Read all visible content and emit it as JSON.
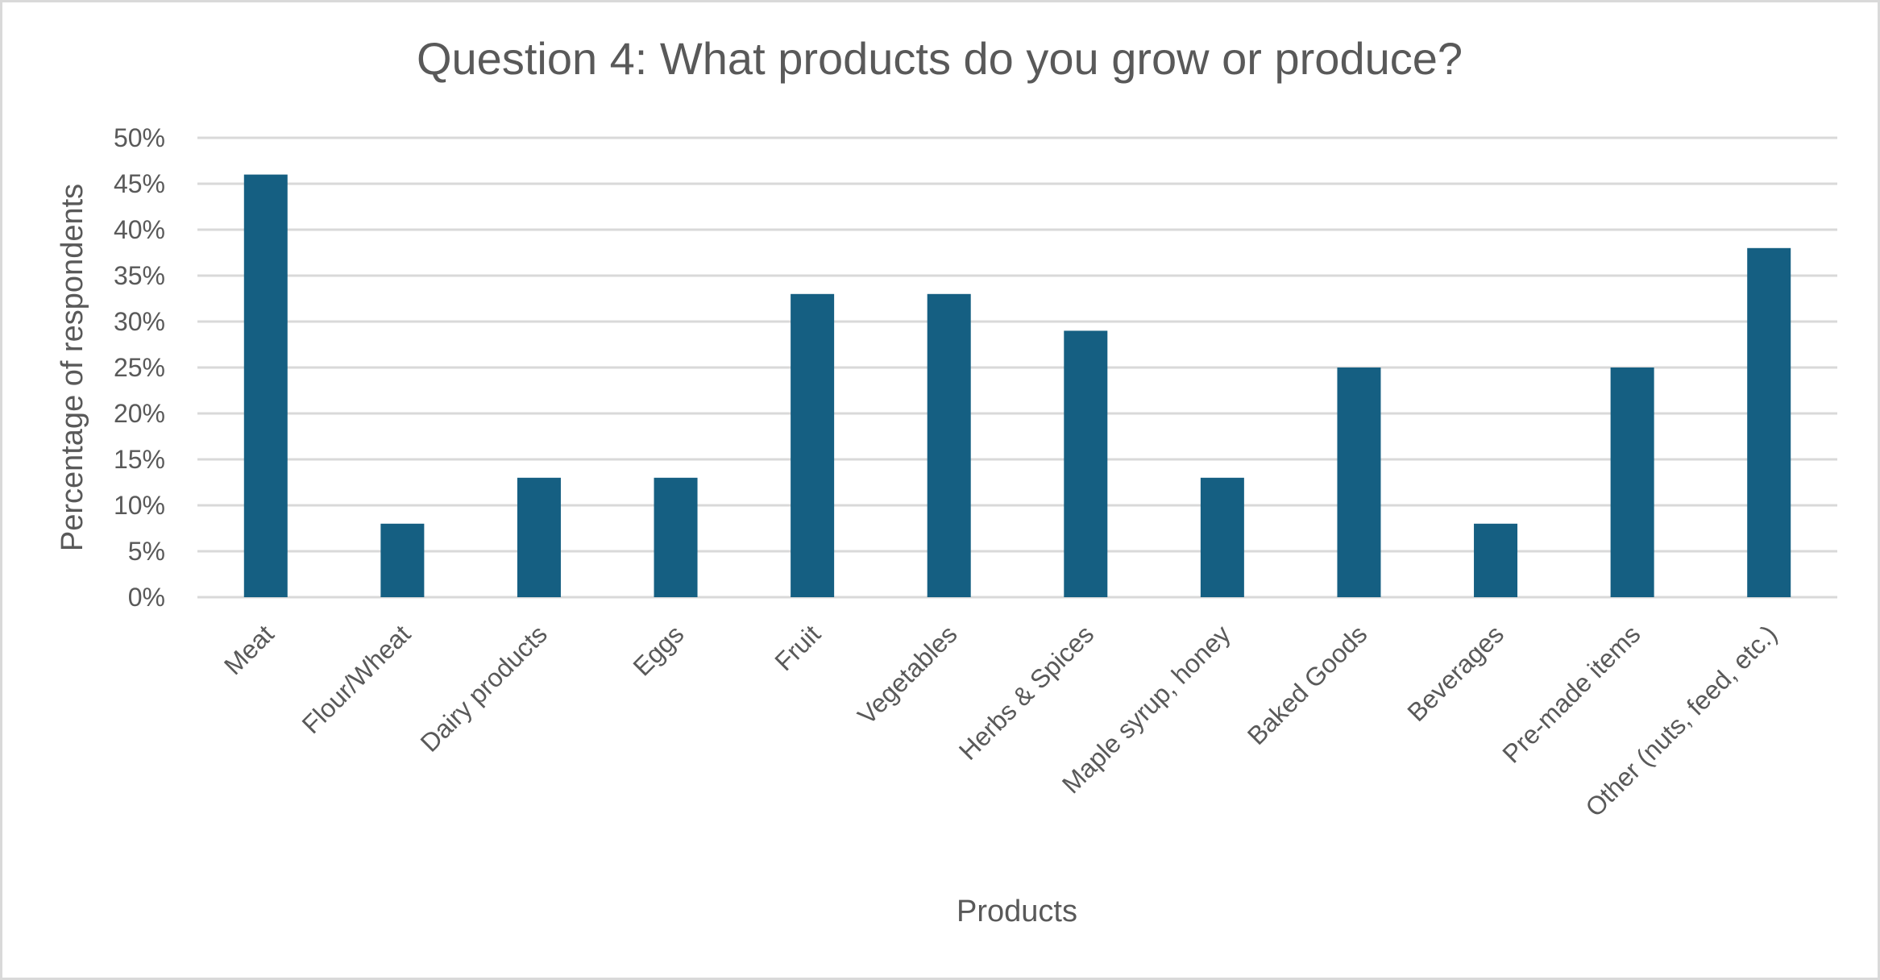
{
  "chart_data": {
    "type": "bar",
    "title": "Question 4: What products do you grow or produce?",
    "xlabel": "Products",
    "ylabel": "Percentage of respondents",
    "categories": [
      "Meat",
      "Flour/Wheat",
      "Dairy products",
      "Eggs",
      "Fruit",
      "Vegetables",
      "Herbs & Spices",
      "Maple syrup, honey",
      "Baked Goods",
      "Beverages",
      "Pre-made items",
      "Other (nuts, feed, etc.)"
    ],
    "values": [
      46,
      8,
      13,
      13,
      33,
      33,
      29,
      13,
      25,
      8,
      25,
      38
    ],
    "unit": "%",
    "ylim": [
      0,
      50
    ],
    "yticks": [
      "0%",
      "5%",
      "10%",
      "15%",
      "20%",
      "25%",
      "30%",
      "35%",
      "40%",
      "45%",
      "50%"
    ],
    "grid": true,
    "legend": "none",
    "colors": {
      "bar": "#155F82",
      "grid": "#D9D9D9",
      "text": "#595959",
      "border": "#D9D9D9"
    }
  }
}
